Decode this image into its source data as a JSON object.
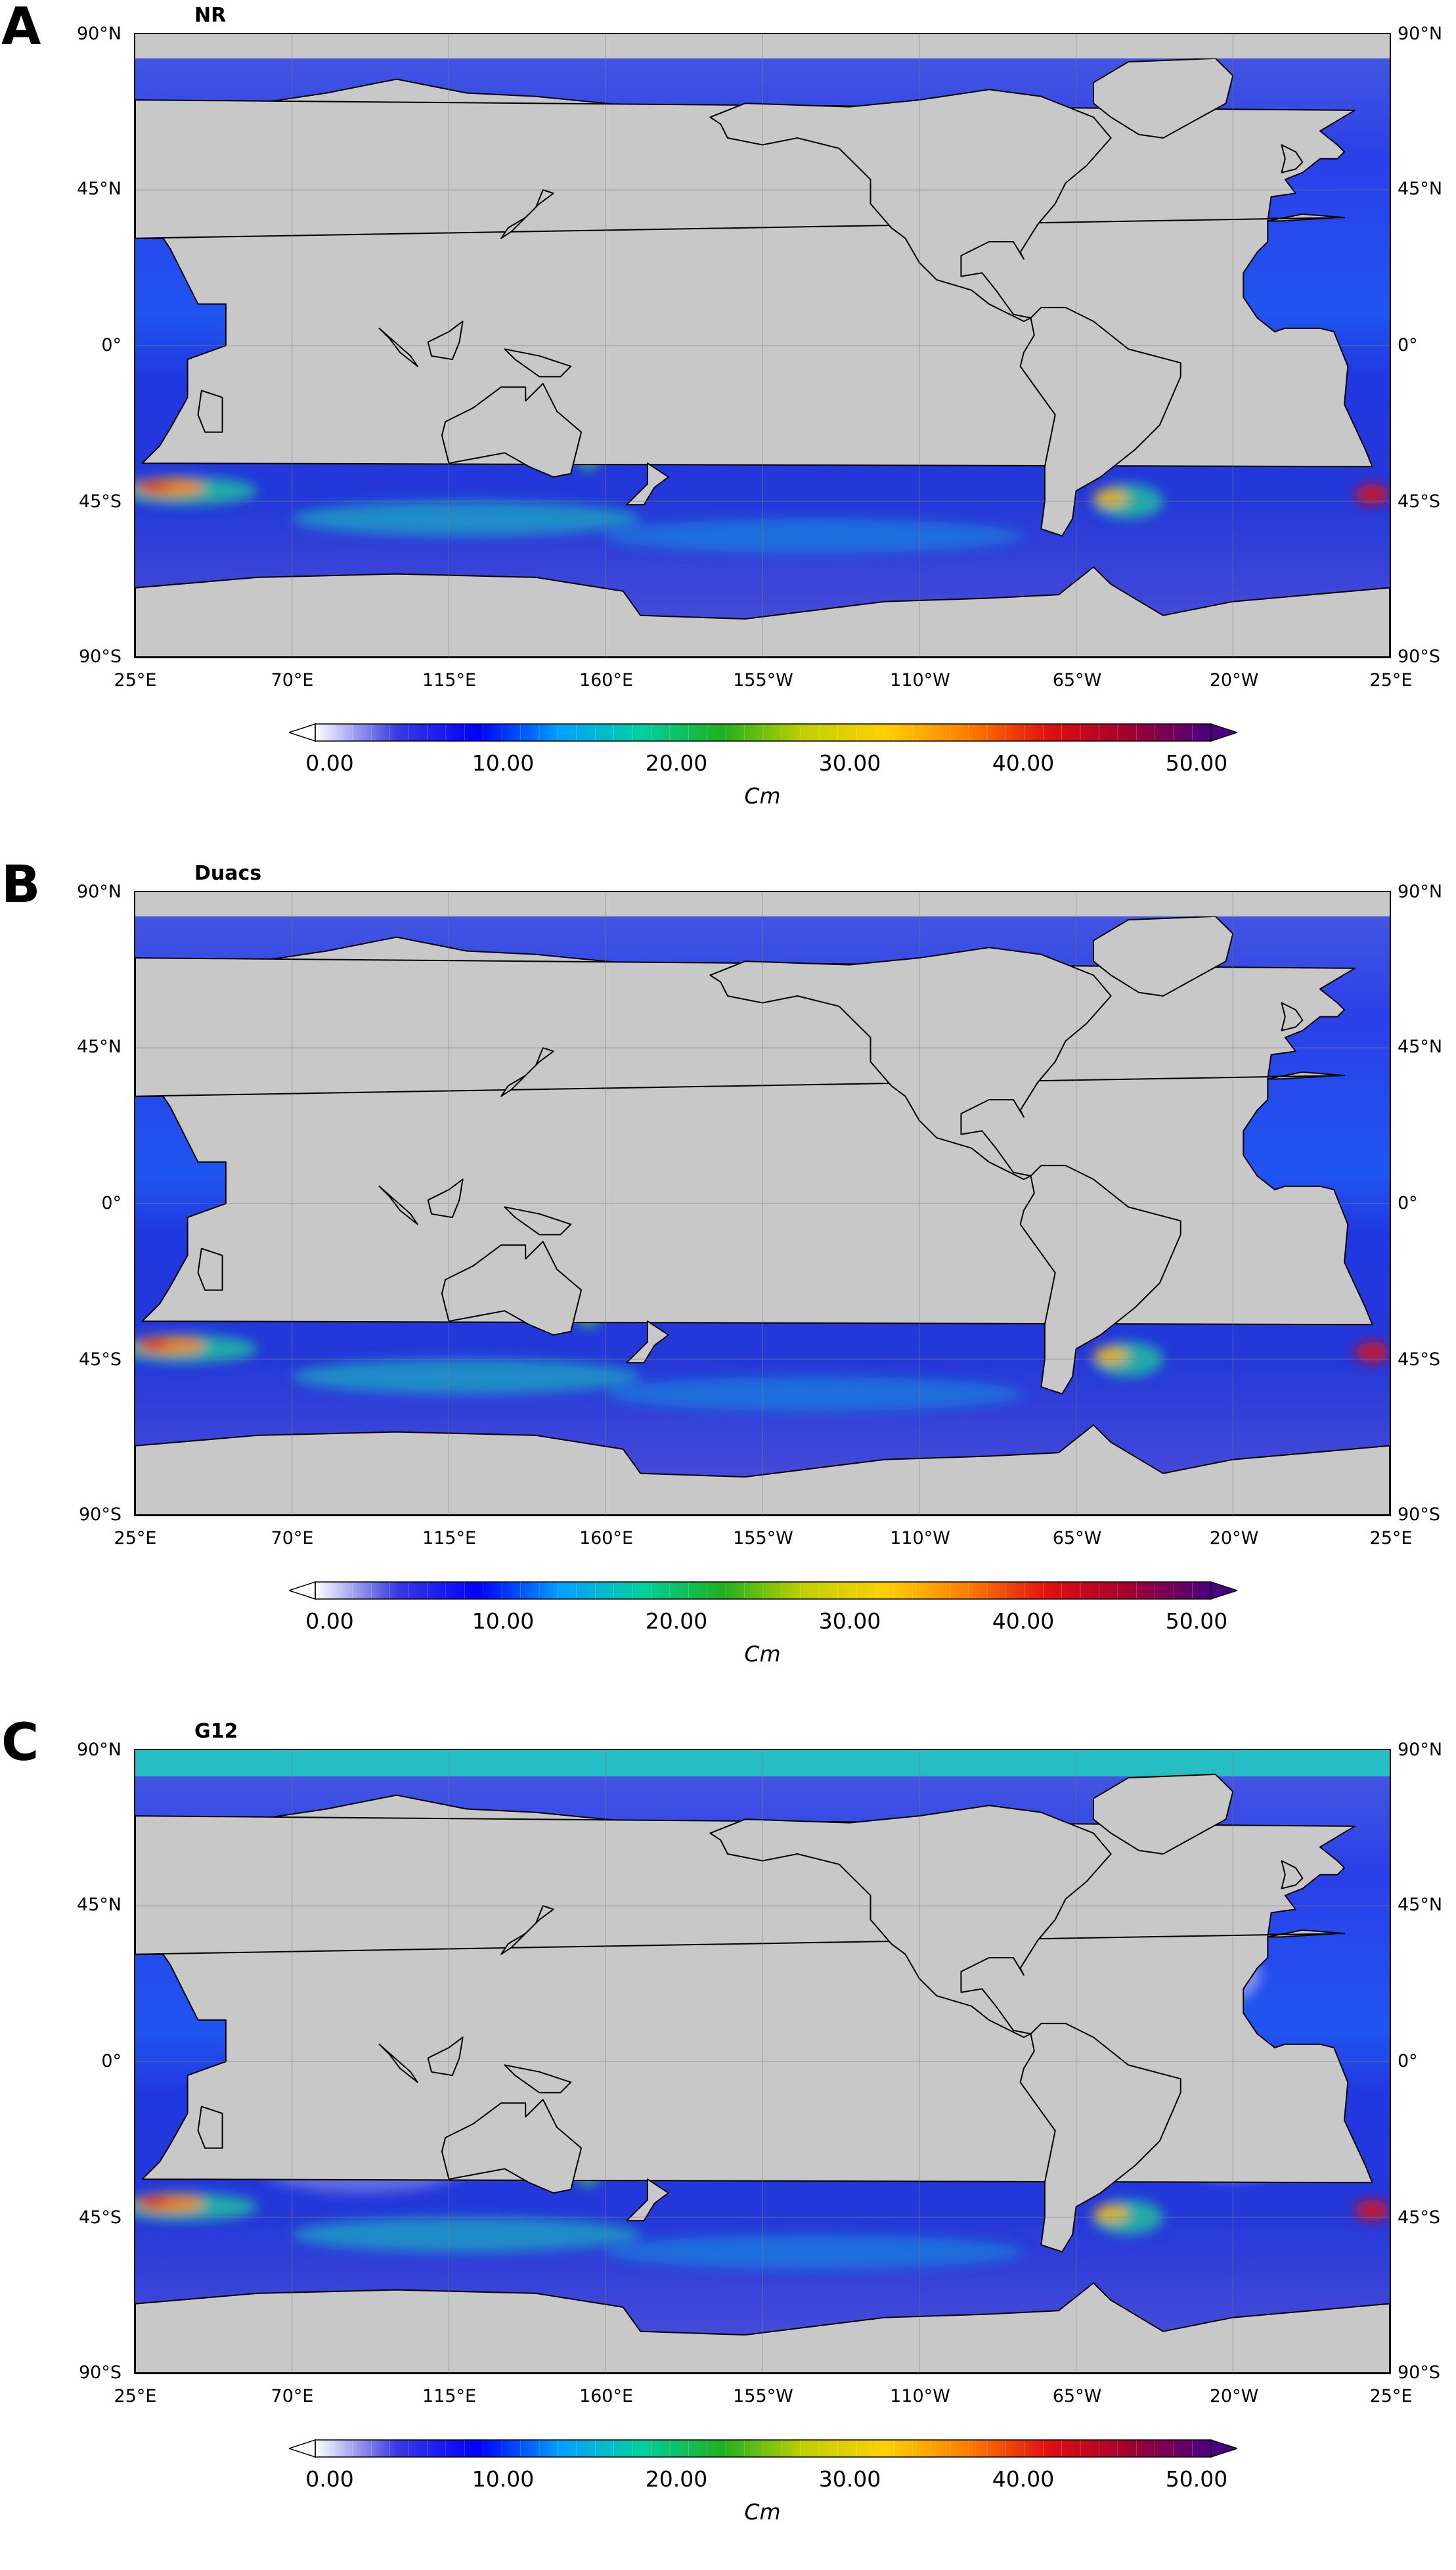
{
  "panels": [
    {
      "letter": "A",
      "title": "NR"
    },
    {
      "letter": "B",
      "title": "Duacs"
    },
    {
      "letter": "C",
      "title": "G12"
    }
  ],
  "lat_labels": [
    "90°N",
    "45°N",
    "0°",
    "45°S",
    "90°S"
  ],
  "lon_labels": [
    "25°E",
    "70°E",
    "115°E",
    "160°E",
    "155°W",
    "110°W",
    "65°W",
    "20°W",
    "25°E"
  ],
  "colorbar": {
    "ticks": [
      "0.00",
      "10.00",
      "20.00",
      "30.00",
      "40.00",
      "50.00"
    ],
    "unit": "Cm",
    "range": [
      0,
      50
    ],
    "colors": [
      "#ffffff",
      "#3a3ae0",
      "#0000ff",
      "#00a0ff",
      "#00d0a0",
      "#20b020",
      "#c0d000",
      "#ffd000",
      "#ff8000",
      "#e01010",
      "#a00030",
      "#4a0080"
    ]
  },
  "colors": {
    "land": "#c8c8c8",
    "coast": "#000000",
    "ocean_low": "#3030d0"
  }
}
